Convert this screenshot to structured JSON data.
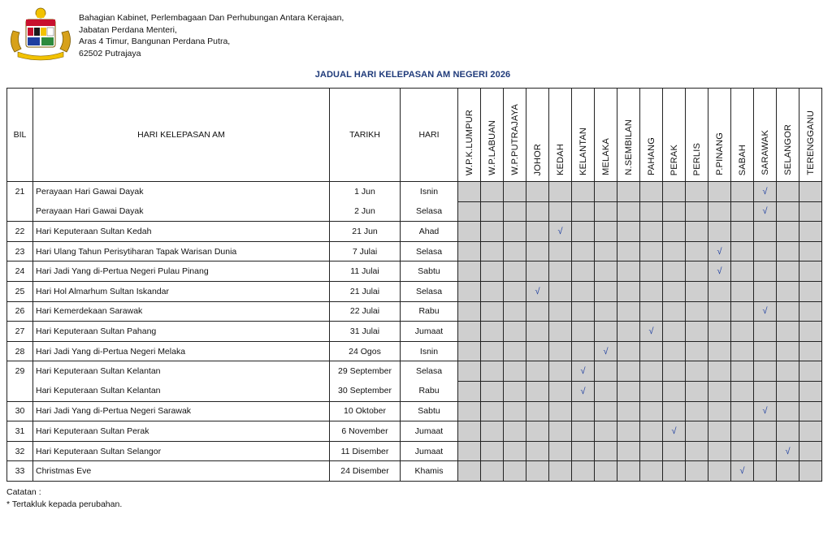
{
  "org": {
    "line1": "Bahagian Kabinet, Perlembagaan Dan Perhubungan Antara  Kerajaan,",
    "line2": "Jabatan Perdana Menteri,",
    "line3": "Aras 4 Timur, Bangunan Perdana Putra,",
    "line4": "62502 Putrajaya"
  },
  "title": "JADUAL HARI KELEPASAN AM NEGERI 2026",
  "columns": {
    "bil": "BIL",
    "holiday": "HARI KELEPASAN AM",
    "date": "TARIKH",
    "day": "HARI",
    "states": [
      "W.P.K.LUMPUR",
      "W.P.LABUAN",
      "W.P.PUTRAJAYA",
      "JOHOR",
      "KEDAH",
      "KELANTAN",
      "MELAKA",
      "N.SEMBILAN",
      "PAHANG",
      "PERAK",
      "PERLIS",
      "P.PINANG",
      "SABAH",
      "SARAWAK",
      "SELANGOR",
      "TERENGGANU"
    ]
  },
  "tick_symbol": "√",
  "rows": [
    {
      "bil": "21",
      "name": "Perayaan Hari Gawai Dayak",
      "date": "1 Jun",
      "day": "Isnin",
      "states": [
        13
      ],
      "group": "start"
    },
    {
      "bil": "",
      "name": "Perayaan Hari Gawai Dayak",
      "date": "2 Jun",
      "day": "Selasa",
      "states": [
        13
      ],
      "group": "end"
    },
    {
      "bil": "22",
      "name": "Hari Keputeraan Sultan Kedah",
      "date": "21 Jun",
      "day": "Ahad",
      "states": [
        4
      ],
      "group": "single"
    },
    {
      "bil": "23",
      "name": "Hari Ulang Tahun Perisytiharan Tapak Warisan Dunia",
      "date": "7 Julai",
      "day": "Selasa",
      "states": [
        11
      ],
      "group": "single"
    },
    {
      "bil": "24",
      "name": "Hari Jadi Yang di-Pertua Negeri Pulau Pinang",
      "date": "11 Julai",
      "day": "Sabtu",
      "states": [
        11
      ],
      "group": "single"
    },
    {
      "bil": "25",
      "name": "Hari Hol Almarhum Sultan Iskandar",
      "date": "21 Julai",
      "day": "Selasa",
      "states": [
        3
      ],
      "group": "single"
    },
    {
      "bil": "26",
      "name": "Hari Kemerdekaan Sarawak",
      "date": "22 Julai",
      "day": "Rabu",
      "states": [
        13
      ],
      "group": "single"
    },
    {
      "bil": "27",
      "name": "Hari Keputeraan Sultan Pahang",
      "date": "31 Julai",
      "day": "Jumaat",
      "states": [
        8
      ],
      "group": "single"
    },
    {
      "bil": "28",
      "name": "Hari Jadi Yang di-Pertua Negeri Melaka",
      "date": "24 Ogos",
      "day": "Isnin",
      "states": [
        6
      ],
      "group": "single"
    },
    {
      "bil": "29",
      "name": "Hari Keputeraan Sultan Kelantan",
      "date": "29 September",
      "day": "Selasa",
      "states": [
        5
      ],
      "group": "start"
    },
    {
      "bil": "",
      "name": "Hari Keputeraan Sultan Kelantan",
      "date": "30 September",
      "day": "Rabu",
      "states": [
        5
      ],
      "group": "end"
    },
    {
      "bil": "30",
      "name": "Hari Jadi Yang di-Pertua Negeri Sarawak",
      "date": "10 Oktober",
      "day": "Sabtu",
      "states": [
        13
      ],
      "group": "single"
    },
    {
      "bil": "31",
      "name": "Hari Keputeraan Sultan Perak",
      "date": "6 November",
      "day": "Jumaat",
      "states": [
        9
      ],
      "group": "single"
    },
    {
      "bil": "32",
      "name": "Hari Keputeraan Sultan Selangor",
      "date": "11 Disember",
      "day": "Jumaat",
      "states": [
        14
      ],
      "group": "single"
    },
    {
      "bil": "33",
      "name": "Christmas  Eve",
      "date": "24 Disember",
      "day": "Khamis",
      "states": [
        12
      ],
      "group": "single"
    }
  ],
  "notes": {
    "label": "Catatan :",
    "item": "*   Tertakluk kepada perubahan."
  }
}
